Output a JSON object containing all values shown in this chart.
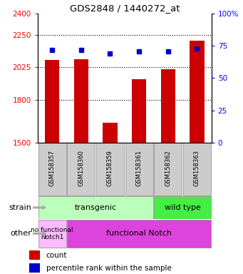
{
  "title": "GDS2848 / 1440272_at",
  "samples": [
    "GSM158357",
    "GSM158360",
    "GSM158359",
    "GSM158361",
    "GSM158362",
    "GSM158363"
  ],
  "counts": [
    2075,
    2082,
    1638,
    1940,
    2010,
    2210
  ],
  "percentiles": [
    72,
    72,
    69,
    71,
    71,
    73
  ],
  "ylim_left": [
    1500,
    2400
  ],
  "ylim_right": [
    0,
    100
  ],
  "yticks_left": [
    1500,
    1800,
    2025,
    2250,
    2400
  ],
  "yticks_right": [
    0,
    25,
    50,
    75,
    100
  ],
  "ytick_right_labels": [
    "0",
    "25",
    "50",
    "75",
    "100%"
  ],
  "bar_color": "#cc0000",
  "dot_color": "#0000cc",
  "strain_transgenic_color": "#bbffbb",
  "strain_wildtype_color": "#44ee44",
  "other_nofunctional_color": "#ffbbff",
  "other_functional_color": "#dd44dd",
  "sample_box_color": "#cccccc",
  "strain_label": "strain",
  "other_label": "other",
  "transgenic_text": "transgenic",
  "wildtype_text": "wild type",
  "nofunctional_text": "no functional\nNotch1",
  "functional_text": "functional Notch",
  "legend_count_label": "count",
  "legend_pct_label": "percentile rank within the sample",
  "dotted_gridlines": [
    1800,
    2025,
    2250
  ],
  "bar_width": 0.5,
  "n_transgenic": 4,
  "n_samples": 6
}
